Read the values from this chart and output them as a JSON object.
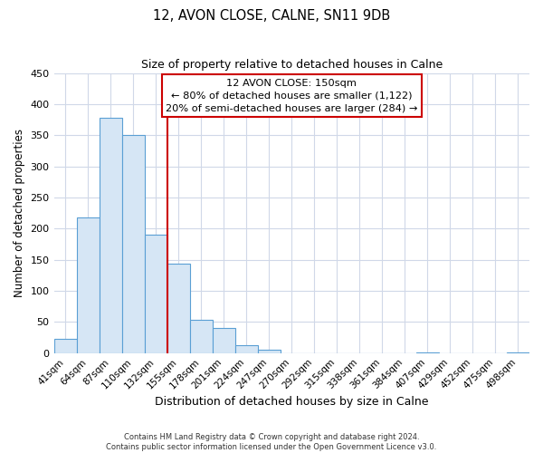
{
  "title": "12, AVON CLOSE, CALNE, SN11 9DB",
  "subtitle": "Size of property relative to detached houses in Calne",
  "xlabel": "Distribution of detached houses by size in Calne",
  "ylabel": "Number of detached properties",
  "bin_labels": [
    "41sqm",
    "64sqm",
    "87sqm",
    "110sqm",
    "132sqm",
    "155sqm",
    "178sqm",
    "201sqm",
    "224sqm",
    "247sqm",
    "270sqm",
    "292sqm",
    "315sqm",
    "338sqm",
    "361sqm",
    "384sqm",
    "407sqm",
    "429sqm",
    "452sqm",
    "475sqm",
    "498sqm"
  ],
  "bar_values": [
    23,
    218,
    378,
    350,
    190,
    143,
    54,
    40,
    13,
    6,
    0,
    0,
    0,
    0,
    0,
    0,
    1,
    0,
    0,
    0,
    1
  ],
  "bar_color": "#d6e6f5",
  "bar_edge_color": "#5a9fd4",
  "marker_line_color": "#cc0000",
  "ylim": [
    0,
    450
  ],
  "yticks": [
    0,
    50,
    100,
    150,
    200,
    250,
    300,
    350,
    400,
    450
  ],
  "annotation_text_line1": "12 AVON CLOSE: 150sqm",
  "annotation_text_line2": "← 80% of detached houses are smaller (1,122)",
  "annotation_text_line3": "20% of semi-detached houses are larger (284) →",
  "footer_line1": "Contains HM Land Registry data © Crown copyright and database right 2024.",
  "footer_line2": "Contains public sector information licensed under the Open Government Licence v3.0.",
  "background_color": "#ffffff",
  "grid_color": "#d0d8e8"
}
